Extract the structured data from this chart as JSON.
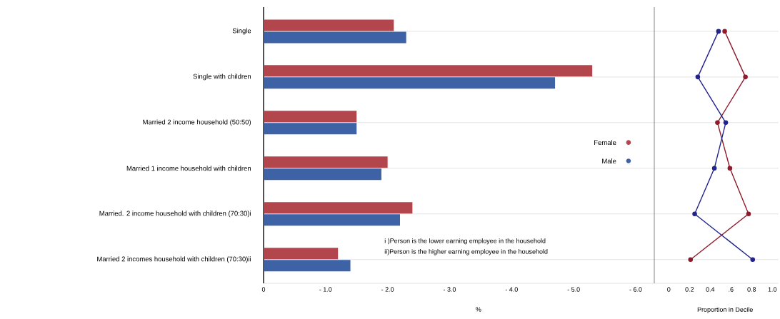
{
  "chart_data": [
    {
      "type": "bar",
      "orientation": "horizontal",
      "categories": [
        "Single",
        "Single with children",
        "Married 2 income household (50:50)",
        "Married 1 income household with children",
        "Married. 2 income household with children (70:30)i",
        "Married 2 incomes household with children (70:30)ii"
      ],
      "series": [
        {
          "name": "Female",
          "color": "#b3454d",
          "values": [
            -2.1,
            -5.3,
            -1.5,
            -2.0,
            -2.4,
            -1.2
          ]
        },
        {
          "name": "Male",
          "color": "#3d63a6",
          "values": [
            -2.3,
            -4.7,
            -1.5,
            -1.9,
            -2.2,
            -1.4
          ]
        }
      ],
      "xlim": [
        0,
        -6.3
      ],
      "xticks": [
        0,
        {
          "value": -1,
          "label": "- 1.0"
        },
        {
          "value": -2,
          "label": "- 2.0"
        },
        {
          "value": -3,
          "label": "- 3.0"
        },
        {
          "value": -4,
          "label": "- 4.0"
        },
        {
          "value": -5,
          "label": "- 5.0"
        },
        {
          "value": -6,
          "label": "- 6.0"
        }
      ],
      "xlabel": "%",
      "grid": "y",
      "legend": "right",
      "annotations": [
        "i )Person is the lower earning employee in the household",
        "ii)Person is the higher earning employee in the household"
      ]
    },
    {
      "type": "line",
      "orientation": "horizontal",
      "categories": [
        null,
        null,
        null,
        null,
        null,
        null
      ],
      "series": [
        {
          "color": "#8e1b2c",
          "values": [
            0.54,
            0.74,
            0.47,
            0.59,
            0.77,
            0.21
          ]
        },
        {
          "color": "#23238f",
          "values": [
            0.48,
            0.28,
            0.55,
            0.44,
            0.25,
            0.81
          ]
        }
      ],
      "xlim": [
        -0.14,
        1.06
      ],
      "xticks": [
        0,
        0.2,
        0.4,
        {
          "value": 0.6,
          "label": ".6"
        },
        0.8,
        {
          "value": 1.0,
          "label": "1.0"
        }
      ],
      "xlabel": "Proportion in Decile",
      "grid": "y",
      "marker": "circle",
      "tick_labels": "x"
    }
  ]
}
